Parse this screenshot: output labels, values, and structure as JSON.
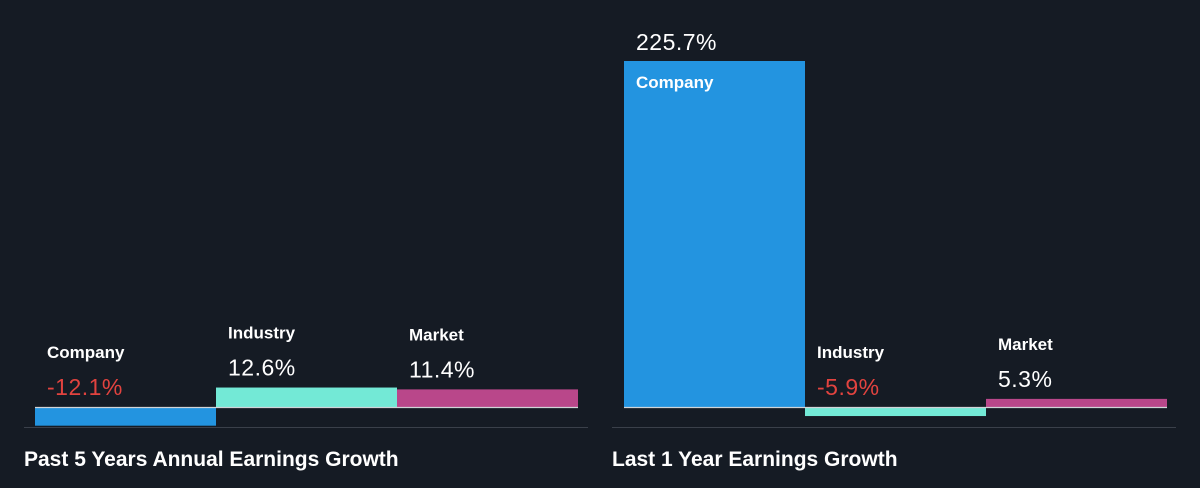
{
  "colors": {
    "background": "#151b24",
    "company": "#2394e0",
    "industry": "#73e9d6",
    "market": "#b9478a",
    "negative_text": "#e2433f",
    "positive_text": "#ffffff",
    "baseline": "#d0d4d8",
    "axis": "#3a404a"
  },
  "chart_data": [
    {
      "type": "bar",
      "title": "Past 5 Years Annual Earnings Growth",
      "categories": [
        "Company",
        "Industry",
        "Market"
      ],
      "values": [
        -12.1,
        12.6,
        11.4
      ],
      "value_labels": [
        "-12.1%",
        "12.6%",
        "11.4%"
      ],
      "unit": "%"
    },
    {
      "type": "bar",
      "title": "Last 1 Year Earnings Growth",
      "categories": [
        "Company",
        "Industry",
        "Market"
      ],
      "values": [
        225.7,
        -5.9,
        5.3
      ],
      "value_labels": [
        "225.7%",
        "-5.9%",
        "5.3%"
      ],
      "unit": "%"
    }
  ]
}
